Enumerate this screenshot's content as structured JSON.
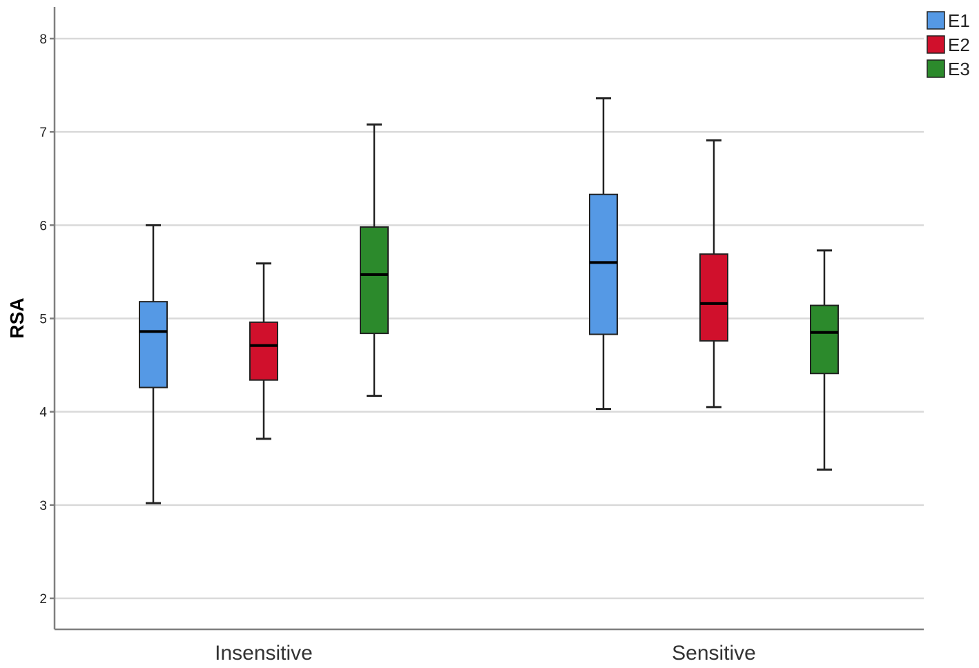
{
  "chart_data": {
    "type": "boxplot",
    "title": "",
    "xlabel": "",
    "ylabel": "RSA",
    "ylim": [
      1.7,
      8.35
    ],
    "yticks": [
      2,
      3,
      4,
      5,
      6,
      7,
      8
    ],
    "categories": [
      "Insensitive",
      "Sensitive"
    ],
    "legend_position": "top-right",
    "series": [
      {
        "name": "E1",
        "color": "#5599e5",
        "boxes": [
          {
            "min": 3.02,
            "q1": 4.26,
            "median": 4.86,
            "q3": 5.18,
            "max": 6.0
          },
          {
            "min": 4.03,
            "q1": 4.83,
            "median": 5.6,
            "q3": 6.33,
            "max": 7.36
          }
        ]
      },
      {
        "name": "E2",
        "color": "#d0102c",
        "boxes": [
          {
            "min": 3.71,
            "q1": 4.34,
            "median": 4.71,
            "q3": 4.96,
            "max": 5.59
          },
          {
            "min": 4.05,
            "q1": 4.76,
            "median": 5.16,
            "q3": 5.69,
            "max": 6.91
          }
        ]
      },
      {
        "name": "E3",
        "color": "#2c8a2c",
        "boxes": [
          {
            "min": 4.17,
            "q1": 4.84,
            "median": 5.47,
            "q3": 5.98,
            "max": 7.08
          },
          {
            "min": 3.38,
            "q1": 4.41,
            "median": 4.85,
            "q3": 5.14,
            "max": 5.73
          }
        ]
      }
    ]
  }
}
